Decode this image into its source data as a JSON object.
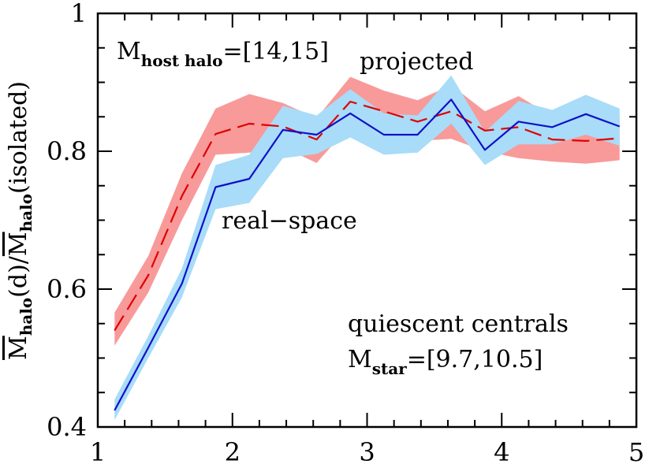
{
  "chart_data": {
    "type": "line",
    "xlim": [
      1,
      5
    ],
    "ylim": [
      0.4,
      1.0
    ],
    "x_ticks": [
      1,
      2,
      3,
      4,
      5
    ],
    "x_tick_labels": [
      "1",
      "2",
      "3",
      "4",
      "5"
    ],
    "y_ticks": [
      0.4,
      0.6,
      0.8,
      1.0
    ],
    "y_tick_labels": [
      "0.4",
      "0.6",
      "0.8",
      "1"
    ],
    "ylabel": {
      "main": "M",
      "sub": "halo",
      "mid": "(d)/",
      "main2": "M",
      "sub2": "halo",
      "tail": "(isolated)"
    },
    "annotations": {
      "host_halo": {
        "main": "M",
        "sub": "host halo",
        "tail": "=[14,15]"
      },
      "projected": "projected",
      "real_space": "real−space",
      "quiescent": "quiescent centrals",
      "mstar": {
        "main": "M",
        "sub": "star",
        "tail": "=[9.7,10.5]"
      }
    },
    "grid": false,
    "series": [
      {
        "key": "projected",
        "color": "#e00000",
        "band_color": "#f89a9a",
        "line_style": "dashed",
        "x": [
          1.125,
          1.375,
          1.625,
          1.875,
          2.125,
          2.375,
          2.625,
          2.875,
          3.125,
          3.375,
          3.625,
          3.875,
          4.125,
          4.375,
          4.625,
          4.875
        ],
        "y": [
          0.54,
          0.62,
          0.735,
          0.825,
          0.84,
          0.836,
          0.817,
          0.872,
          0.858,
          0.843,
          0.858,
          0.83,
          0.835,
          0.817,
          0.815,
          0.819
        ],
        "y_low": [
          0.518,
          0.595,
          0.7,
          0.795,
          0.798,
          0.806,
          0.783,
          0.838,
          0.825,
          0.815,
          0.818,
          0.8,
          0.79,
          0.785,
          0.782,
          0.787
        ],
        "y_high": [
          0.566,
          0.648,
          0.768,
          0.862,
          0.883,
          0.87,
          0.848,
          0.908,
          0.888,
          0.874,
          0.896,
          0.858,
          0.88,
          0.851,
          0.85,
          0.852
        ]
      },
      {
        "key": "real-space",
        "color": "#1010c8",
        "band_color": "#a8dcf8",
        "line_style": "solid",
        "x": [
          1.125,
          1.375,
          1.625,
          1.875,
          2.125,
          2.375,
          2.625,
          2.875,
          3.125,
          3.375,
          3.625,
          3.875,
          4.125,
          4.375,
          4.625,
          4.875
        ],
        "y": [
          0.424,
          0.515,
          0.608,
          0.748,
          0.76,
          0.831,
          0.824,
          0.855,
          0.824,
          0.824,
          0.875,
          0.802,
          0.843,
          0.835,
          0.854,
          0.836
        ],
        "y_low": [
          0.41,
          0.5,
          0.588,
          0.716,
          0.725,
          0.79,
          0.796,
          0.82,
          0.795,
          0.798,
          0.84,
          0.78,
          0.81,
          0.81,
          0.824,
          0.808
        ],
        "y_high": [
          0.44,
          0.532,
          0.63,
          0.78,
          0.795,
          0.866,
          0.852,
          0.89,
          0.855,
          0.852,
          0.91,
          0.828,
          0.873,
          0.86,
          0.882,
          0.862
        ]
      }
    ]
  }
}
